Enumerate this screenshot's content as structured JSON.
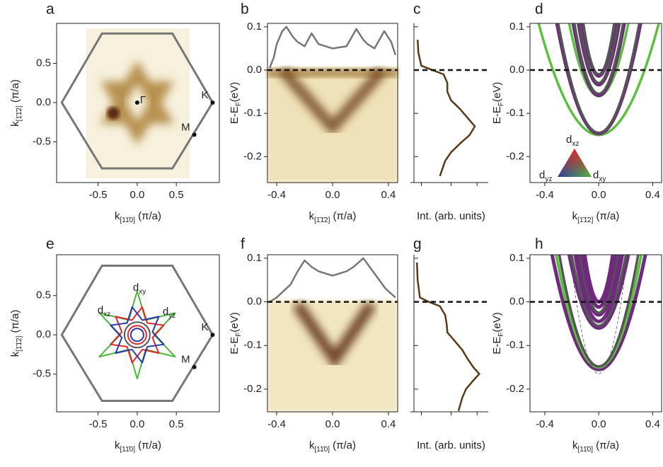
{
  "chart_data": [
    {
      "type": "map",
      "panel_label": "a",
      "x_label": {
        "main": "k",
        "sub": "[11̄0]",
        "unit": " (π/a)"
      },
      "y_label": {
        "main": "k",
        "sub": "[1̄1̄2]",
        "unit": " (π/a)"
      },
      "xlim": [
        -1.03,
        1.05
      ],
      "xticks": [
        -0.5,
        {
          "value": 0,
          "label": "0.0"
        },
        0.5
      ],
      "ylim": [
        -1.02,
        1.01
      ],
      "yticks": [
        0.5,
        {
          "value": 0,
          "label": "0.0"
        },
        -0.5
      ],
      "hexagon": {
        "x": [
          0.964,
          0.45,
          -0.45,
          -0.964,
          -0.45,
          0.45
        ],
        "y": [
          0,
          0.88,
          0.88,
          0,
          -0.84,
          -0.84
        ]
      },
      "points": [
        {
          "label": "Γ",
          "x": 0,
          "y": 0
        },
        {
          "label": "K",
          "x": 0.964,
          "y": 0
        },
        {
          "label": "M",
          "x": 0.73,
          "y": -0.41
        }
      ]
    },
    {
      "type": "spectrum",
      "panel_label": "b",
      "x_label": {
        "main": "k",
        "sub": "[1̄1̄2]",
        "unit": " (π/a)"
      },
      "y_label": {
        "main": "E-E",
        "sub": "F",
        "unit": "(eV)"
      },
      "xlim": [
        -0.466,
        0.466
      ],
      "xticks": [
        -0.4,
        {
          "value": 0,
          "label": "0.0"
        },
        0.4
      ],
      "ylim": [
        -0.26,
        0.108
      ],
      "yticks": [
        0.1,
        {
          "value": 0,
          "label": "0.0"
        },
        -0.1,
        -0.2
      ],
      "fermi_line": true,
      "profile": {
        "color": "#777777",
        "x": [
          -0.45,
          -0.42,
          -0.4,
          -0.36,
          -0.33,
          -0.28,
          -0.25,
          -0.2,
          -0.15,
          -0.1,
          0,
          0.1,
          0.17,
          0.22,
          0.25,
          0.3,
          0.37,
          0.42,
          0.45
        ],
        "values": [
          0.005,
          0.03,
          0.06,
          0.09,
          0.1,
          0.075,
          0.065,
          0.055,
          0.085,
          0.06,
          0.05,
          0.055,
          0.095,
          0.07,
          0.06,
          0.05,
          0.09,
          0.065,
          0.035
        ]
      }
    },
    {
      "type": "profile",
      "panel_label": "c",
      "x_label": "Int. (arb. units)",
      "xlim": [
        0,
        1
      ],
      "ylim": [
        -0.26,
        0.108
      ],
      "fermi_line": true,
      "series": [
        {
          "color": "#5a3a14",
          "x": [
            0.05,
            0.06,
            0.1,
            0.25,
            0.4,
            0.45,
            0.45,
            0.5,
            0.62,
            0.72,
            0.82,
            0.75,
            0.62,
            0.5,
            0.42,
            0.35
          ],
          "values": [
            0.07,
            0.04,
            0.01,
            0,
            -0.01,
            -0.03,
            -0.05,
            -0.07,
            -0.09,
            -0.11,
            -0.13,
            -0.15,
            -0.17,
            -0.19,
            -0.21,
            -0.245
          ]
        }
      ]
    },
    {
      "type": "bands",
      "panel_label": "d",
      "x_label": {
        "main": "k",
        "sub": "[1̄1̄2]",
        "unit": " (π/a)"
      },
      "y_label": {
        "main": "E-E",
        "sub": "F",
        "unit": "(eV)"
      },
      "xlim": [
        -0.51,
        0.466
      ],
      "xticks": [
        -0.4,
        {
          "value": 0,
          "label": "0.0"
        },
        0.4
      ],
      "ylim": [
        -0.26,
        0.108
      ],
      "yticks": [
        0.1,
        {
          "value": 0,
          "label": "0.0"
        },
        -0.1,
        -0.2
      ],
      "fermi_line": true,
      "orbitals": [
        {
          "main": "d",
          "sub": "xz",
          "color": "#e02828"
        },
        {
          "main": "d",
          "sub": "yz",
          "color": "#2a3aa8"
        },
        {
          "main": "d",
          "sub": "xy",
          "color": "#4cb83a"
        }
      ],
      "bands": [
        {
          "color": "#5cbf3f",
          "min": -0.15,
          "curvature": 1.3,
          "width": 3.5
        },
        {
          "color": "#6f2a7e",
          "min": -0.148,
          "curvature": 2.6,
          "width": 3.5
        },
        {
          "color": "#555555",
          "min": -0.145,
          "curvature": 2.8,
          "width": 3.5
        },
        {
          "color": "#5cbf3f",
          "min": -0.06,
          "curvature": 3.5,
          "width": 3.5
        },
        {
          "color": "#6f2a7e",
          "min": -0.06,
          "curvature": 4.5,
          "width": 3.5
        },
        {
          "color": "#555555",
          "min": -0.055,
          "curvature": 5,
          "width": 3.5
        },
        {
          "color": "#6f2a7e",
          "min": -0.035,
          "curvature": 6,
          "width": 3.5
        },
        {
          "color": "#555555",
          "min": -0.03,
          "curvature": 7,
          "width": 3.5
        },
        {
          "color": "#6f2a7e",
          "min": -0.015,
          "curvature": 8,
          "width": 3.5
        },
        {
          "color": "#555555",
          "min": -0.01,
          "curvature": 9,
          "width": 3.5
        }
      ]
    },
    {
      "type": "map",
      "panel_label": "e",
      "x_label": {
        "main": "k",
        "sub": "[11̄0]",
        "unit": " (π/a)"
      },
      "y_label": {
        "main": "k",
        "sub": "[1̄1̄2]",
        "unit": " (π/a)"
      },
      "xlim": [
        -1.03,
        1.05
      ],
      "xticks": [
        -0.5,
        {
          "value": 0,
          "label": "0.0"
        },
        0.5
      ],
      "ylim": [
        -0.98,
        1.02
      ],
      "yticks": [
        0.5,
        {
          "value": 0,
          "label": "0.0"
        },
        -0.5
      ],
      "hexagon": {
        "x": [
          0.964,
          0.45,
          -0.45,
          -0.964,
          -0.45,
          0.45
        ],
        "y": [
          0,
          0.88,
          0.88,
          0,
          -0.84,
          -0.84
        ]
      },
      "points": [
        {
          "label": "K",
          "x": 0.964,
          "y": 0
        },
        {
          "label": "M",
          "x": 0.73,
          "y": -0.41
        }
      ],
      "orbitals": [
        {
          "main": "d",
          "sub": "xy",
          "color": "#4cb83a"
        },
        {
          "main": "d",
          "sub": "xz",
          "color": "#e02828"
        },
        {
          "main": "d",
          "sub": "yz",
          "color": "#2a3aa8"
        }
      ]
    },
    {
      "type": "spectrum",
      "panel_label": "f",
      "x_label": {
        "main": "k",
        "sub": "[11̄0]",
        "unit": " (π/a)"
      },
      "y_label": {
        "main": "E-E",
        "sub": "F",
        "unit": "(eV)"
      },
      "xlim": [
        -0.466,
        0.466
      ],
      "xticks": [
        -0.4,
        {
          "value": 0,
          "label": "0.0"
        },
        0.4
      ],
      "ylim": [
        -0.252,
        0.108
      ],
      "yticks": [
        0.1,
        {
          "value": 0,
          "label": "0.0"
        },
        -0.1,
        -0.2
      ],
      "fermi_line": true,
      "profile": {
        "color": "#777777",
        "x": [
          -0.45,
          -0.4,
          -0.3,
          -0.25,
          -0.2,
          -0.15,
          -0.1,
          0,
          0.1,
          0.15,
          0.22,
          0.3,
          0.38,
          0.45
        ],
        "values": [
          0,
          0.01,
          0.04,
          0.07,
          0.095,
          0.08,
          0.07,
          0.06,
          0.07,
          0.08,
          0.1,
          0.065,
          0.03,
          0.01
        ]
      }
    },
    {
      "type": "profile",
      "panel_label": "g",
      "x_label": "Int. (arb. units)",
      "xlim": [
        0,
        1
      ],
      "ylim": [
        -0.252,
        0.108
      ],
      "fermi_line": true,
      "series": [
        {
          "color": "#5a3a14",
          "x": [
            0.04,
            0.05,
            0.08,
            0.2,
            0.35,
            0.42,
            0.44,
            0.45,
            0.55,
            0.65,
            0.72,
            0.8,
            0.88,
            0.8,
            0.7,
            0.65,
            0.6
          ],
          "values": [
            0.09,
            0.05,
            0.01,
            0,
            -0.01,
            -0.03,
            -0.05,
            -0.07,
            -0.09,
            -0.11,
            -0.13,
            -0.15,
            -0.165,
            -0.18,
            -0.2,
            -0.22,
            -0.25
          ]
        }
      ]
    },
    {
      "type": "bands",
      "panel_label": "h",
      "x_label": {
        "main": "k",
        "sub": "[11̄0]",
        "unit": " (π/a)"
      },
      "y_label": {
        "main": "E-E",
        "sub": "F",
        "unit": "(eV)"
      },
      "xlim": [
        -0.51,
        0.466
      ],
      "xticks": [
        -0.4,
        {
          "value": 0,
          "label": "0.0"
        },
        0.4
      ],
      "ylim": [
        -0.252,
        0.108
      ],
      "yticks": [
        0.1,
        {
          "value": 0,
          "label": "0.0"
        },
        -0.1,
        -0.2
      ],
      "fermi_line": true,
      "bands": [
        {
          "color": "#6f2a7e",
          "min": -0.155,
          "curvature": 2.2,
          "width": 5
        },
        {
          "color": "#5cbf3f",
          "min": -0.15,
          "curvature": 2.6,
          "width": 4
        },
        {
          "color": "#555555",
          "min": -0.148,
          "curvature": 3,
          "width": 3.5
        },
        {
          "color": "#6f2a7e",
          "min": -0.06,
          "curvature": 3.5,
          "width": 5
        },
        {
          "color": "#555555",
          "min": -0.055,
          "curvature": 4,
          "width": 3.5
        },
        {
          "color": "#6f2a7e",
          "min": -0.045,
          "curvature": 5,
          "width": 5
        },
        {
          "color": "#6f2a7e",
          "min": -0.03,
          "curvature": 6,
          "width": 5
        },
        {
          "color": "#555555",
          "min": -0.025,
          "curvature": 7,
          "width": 3.5
        },
        {
          "color": "#6f2a7e",
          "min": -0.012,
          "curvature": 8,
          "width": 5
        },
        {
          "color": "#6f2a7e",
          "min": 0,
          "curvature": 10,
          "width": 5
        },
        {
          "color": "#555555",
          "min": -0.165,
          "curvature": 6,
          "width": 0.8,
          "dash": true
        }
      ]
    }
  ]
}
